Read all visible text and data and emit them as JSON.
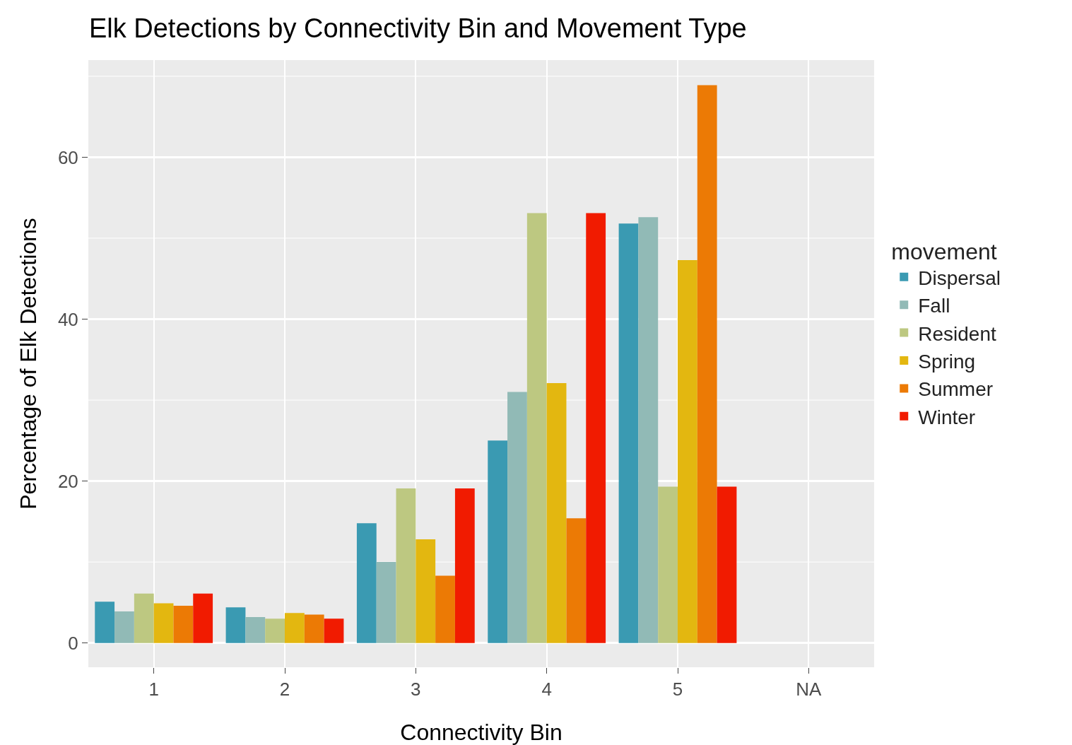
{
  "chart_data": {
    "type": "bar",
    "title": "Elk Detections by Connectivity Bin and Movement Type",
    "xlabel": "Connectivity Bin",
    "ylabel": "Percentage of Elk Detections",
    "legend_title": "movement",
    "categories": [
      "1",
      "2",
      "3",
      "4",
      "5",
      "NA"
    ],
    "series": [
      {
        "name": "Dispersal",
        "color": "#3a9ab2",
        "values": [
          5.1,
          4.4,
          14.8,
          25.0,
          51.8,
          null
        ]
      },
      {
        "name": "Fall",
        "color": "#91bab6",
        "values": [
          3.9,
          3.2,
          10.0,
          31.0,
          52.6,
          null
        ]
      },
      {
        "name": "Resident",
        "color": "#bdc881",
        "values": [
          6.1,
          3.0,
          19.1,
          53.1,
          19.3,
          null
        ]
      },
      {
        "name": "Spring",
        "color": "#e3b710",
        "values": [
          4.9,
          3.7,
          12.8,
          32.1,
          47.3,
          null
        ]
      },
      {
        "name": "Summer",
        "color": "#ec7a05",
        "values": [
          4.6,
          3.5,
          8.3,
          15.4,
          68.9,
          null
        ]
      },
      {
        "name": "Winter",
        "color": "#f11b00",
        "values": [
          6.1,
          3.0,
          19.1,
          53.1,
          19.3,
          null
        ]
      }
    ],
    "ylim": [
      -3,
      72
    ],
    "yticks": [
      0,
      20,
      40,
      60
    ],
    "grid": true,
    "legend": "right"
  }
}
